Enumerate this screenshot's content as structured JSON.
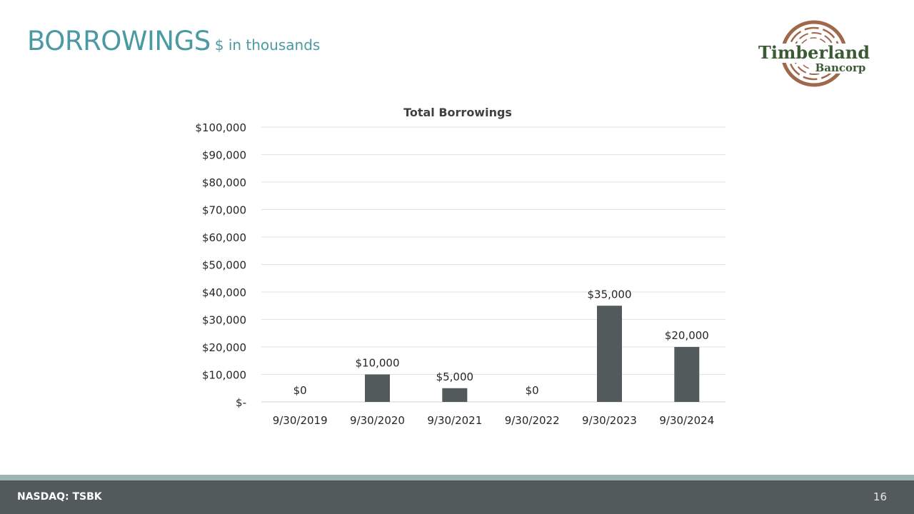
{
  "slide": {
    "title": "BORROWINGS",
    "subtitle": "$ in thousands",
    "footer_ticker": "NASDAQ: TSBK",
    "page_number": "16",
    "accent_color": "#4b9aa3",
    "footer_color": "#525a5c"
  },
  "logo": {
    "name_top": "Timberland",
    "name_bottom": "Bancorp",
    "ring_color": "#a0674b",
    "text_color": "#3b5a34"
  },
  "chart_data": {
    "type": "bar",
    "title": "Total Borrowings",
    "categories": [
      "9/30/2019",
      "9/30/2020",
      "9/30/2021",
      "9/30/2022",
      "9/30/2023",
      "9/30/2024"
    ],
    "values": [
      0,
      10000,
      5000,
      0,
      35000,
      20000
    ],
    "data_labels": [
      "$0",
      "$10,000",
      "$5,000",
      "$0",
      "$35,000",
      "$20,000"
    ],
    "y_ticks": [
      0,
      10000,
      20000,
      30000,
      40000,
      50000,
      60000,
      70000,
      80000,
      90000,
      100000
    ],
    "y_tick_labels": [
      "$-",
      "$10,000",
      "$20,000",
      "$30,000",
      "$40,000",
      "$50,000",
      "$60,000",
      "$70,000",
      "$80,000",
      "$90,000",
      "$100,000"
    ],
    "ylim": [
      0,
      100000
    ],
    "xlabel": "",
    "ylabel": "",
    "grid": true,
    "bar_color": "#525a5c"
  }
}
